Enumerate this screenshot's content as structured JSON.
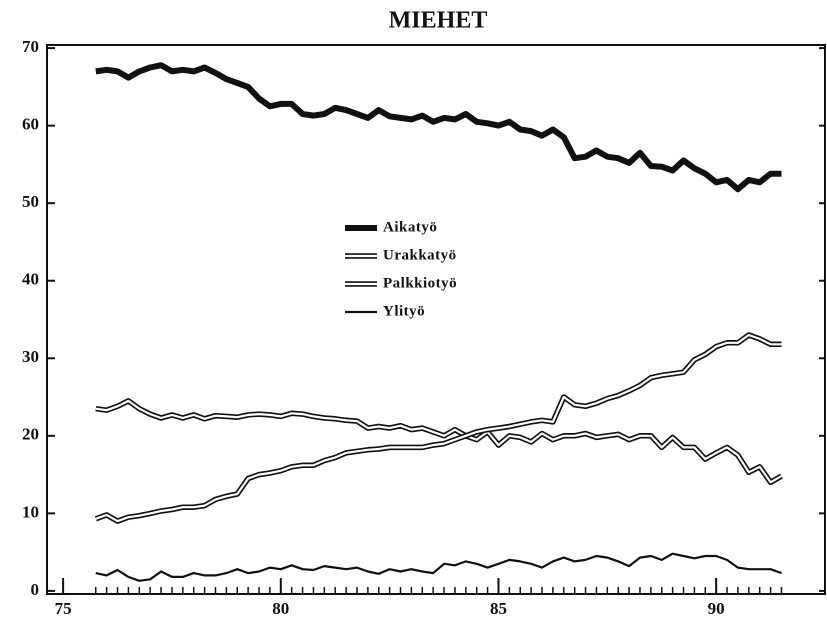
{
  "chart_data": {
    "type": "line",
    "title": "MIEHET",
    "x": [
      75.75,
      76,
      76.25,
      76.5,
      76.75,
      77,
      77.25,
      77.5,
      77.75,
      78,
      78.25,
      78.5,
      78.75,
      79,
      79.25,
      79.5,
      79.75,
      80,
      80.25,
      80.5,
      80.75,
      81,
      81.25,
      81.5,
      81.75,
      82,
      82.25,
      82.5,
      82.75,
      83,
      83.25,
      83.5,
      83.75,
      84,
      84.25,
      84.5,
      84.75,
      85,
      85.25,
      85.5,
      85.75,
      86,
      86.25,
      86.5,
      86.75,
      87,
      87.25,
      87.5,
      87.75,
      88,
      88.25,
      88.5,
      88.75,
      89,
      89.25,
      89.5,
      89.75,
      90,
      90.25,
      90.5,
      90.75,
      91,
      91.25,
      91.5
    ],
    "series": [
      {
        "name": "Aikatyö",
        "color": "#111111",
        "style": "thick",
        "values": [
          67,
          67.2,
          67,
          66.2,
          67,
          67.5,
          67.8,
          67,
          67.2,
          67,
          67.5,
          66.8,
          66,
          65.5,
          65,
          63.5,
          62.5,
          62.8,
          62.8,
          61.5,
          61.3,
          61.5,
          62.3,
          62,
          61.5,
          61,
          62,
          61.2,
          61,
          60.8,
          61.3,
          60.5,
          61,
          60.8,
          61.5,
          60.5,
          60.3,
          60,
          60.5,
          59.5,
          59.3,
          58.7,
          59.5,
          58.5,
          55.8,
          56,
          56.8,
          56,
          55.8,
          55.2,
          56.5,
          54.8,
          54.7,
          54.2,
          55.5,
          54.5,
          53.8,
          52.7,
          53,
          51.8,
          53,
          52.7,
          53.8,
          53.8
        ]
      },
      {
        "name": "Urakkatyö",
        "color": "#111111",
        "style": "double",
        "values": [
          23.5,
          23.3,
          23.8,
          24.5,
          23.5,
          22.8,
          22.3,
          22.7,
          22.3,
          22.7,
          22.2,
          22.6,
          22.5,
          22.4,
          22.7,
          22.8,
          22.7,
          22.5,
          22.9,
          22.8,
          22.5,
          22.3,
          22.2,
          22,
          21.9,
          21,
          21.2,
          21,
          21.3,
          20.8,
          21,
          20.5,
          20,
          20.8,
          20,
          19.5,
          20.5,
          18.8,
          20,
          19.8,
          19.2,
          20.3,
          19.5,
          20,
          20,
          20.3,
          19.8,
          20,
          20.2,
          19.5,
          20,
          20,
          18.5,
          19.8,
          18.5,
          18.5,
          17,
          17.8,
          18.5,
          17.5,
          15.3,
          16,
          14,
          14.8
        ]
      },
      {
        "name": "Palkkiotyö",
        "color": "#111111",
        "style": "double",
        "values": [
          9.3,
          9.8,
          9,
          9.5,
          9.7,
          10,
          10.3,
          10.5,
          10.8,
          10.8,
          11,
          11.8,
          12.2,
          12.5,
          14.5,
          15,
          15.2,
          15.5,
          16,
          16.2,
          16.2,
          16.8,
          17.2,
          17.8,
          18,
          18.2,
          18.3,
          18.5,
          18.5,
          18.5,
          18.5,
          18.8,
          19,
          19.5,
          20,
          20.5,
          20.8,
          21,
          21.2,
          21.5,
          21.8,
          22,
          21.8,
          25,
          24,
          23.8,
          24.2,
          24.8,
          25.2,
          25.8,
          26.5,
          27.5,
          27.8,
          28,
          28.2,
          29.8,
          30.5,
          31.5,
          32,
          32,
          33,
          32.5,
          31.8,
          31.8
        ]
      },
      {
        "name": "Ylityö",
        "color": "#111111",
        "style": "thin",
        "values": [
          2.3,
          2,
          2.7,
          1.8,
          1.3,
          1.5,
          2.5,
          1.8,
          1.8,
          2.3,
          2,
          2,
          2.3,
          2.8,
          2.3,
          2.5,
          3,
          2.8,
          3.3,
          2.8,
          2.7,
          3.2,
          3,
          2.8,
          3,
          2.5,
          2.2,
          2.8,
          2.5,
          2.8,
          2.5,
          2.3,
          3.5,
          3.3,
          3.8,
          3.5,
          3,
          3.5,
          4,
          3.8,
          3.5,
          3,
          3.8,
          4.3,
          3.8,
          4,
          4.5,
          4.3,
          3.8,
          3.2,
          4.3,
          4.5,
          4,
          4.8,
          4.5,
          4.2,
          4.5,
          4.5,
          4,
          3,
          2.8,
          2.8,
          2.8,
          2.3
        ]
      }
    ],
    "xlim": [
      74.63,
      92.5
    ],
    "xticks": [
      75,
      80,
      85,
      90
    ],
    "ylim": [
      -0.4,
      70.4
    ],
    "yticks": [
      0,
      10,
      20,
      30,
      40,
      50,
      60,
      70
    ],
    "legend": "center"
  }
}
